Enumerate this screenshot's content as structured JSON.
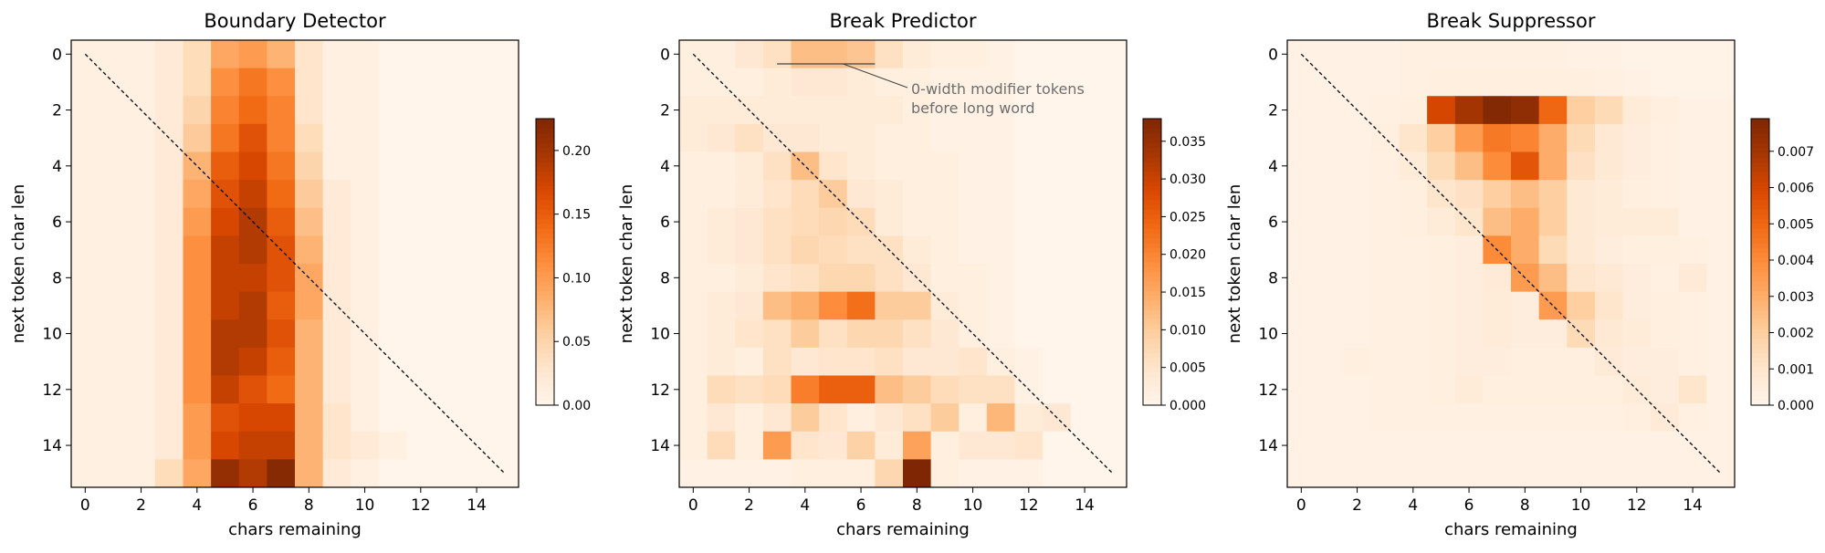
{
  "chart_data": [
    {
      "type": "heatmap",
      "title": "Boundary Detector",
      "xlabel": "chars remaining",
      "ylabel": "next token char len",
      "x_ticks": [
        "0",
        "2",
        "4",
        "6",
        "8",
        "10",
        "12",
        "14"
      ],
      "y_ticks": [
        "0",
        "2",
        "4",
        "6",
        "8",
        "10",
        "12",
        "14"
      ],
      "x_range": [
        0,
        15
      ],
      "y_range": [
        0,
        15
      ],
      "colorbar": {
        "ticks": [
          "0.00",
          "0.05",
          "0.10",
          "0.15",
          "0.20"
        ],
        "tick_values": [
          0,
          0.05,
          0.1,
          0.15,
          0.2
        ],
        "vmin": 0,
        "vmax": 0.225
      },
      "colormap": "Oranges",
      "diagonal_line": true,
      "values": [
        [
          0.01,
          0.01,
          0.01,
          0.02,
          0.04,
          0.09,
          0.1,
          0.08,
          0.03,
          0.01,
          0.01,
          0,
          0,
          0,
          0,
          0
        ],
        [
          0.01,
          0.01,
          0.01,
          0.02,
          0.04,
          0.11,
          0.13,
          0.11,
          0.03,
          0.01,
          0.01,
          0,
          0,
          0,
          0,
          0
        ],
        [
          0.01,
          0.01,
          0.01,
          0.02,
          0.05,
          0.12,
          0.14,
          0.12,
          0.03,
          0.01,
          0.01,
          0,
          0,
          0,
          0,
          0
        ],
        [
          0.01,
          0.01,
          0.01,
          0.02,
          0.06,
          0.13,
          0.16,
          0.12,
          0.04,
          0.01,
          0.01,
          0,
          0,
          0,
          0,
          0
        ],
        [
          0.01,
          0.01,
          0.01,
          0.02,
          0.08,
          0.15,
          0.17,
          0.13,
          0.05,
          0.01,
          0.01,
          0,
          0,
          0,
          0,
          0
        ],
        [
          0.01,
          0.01,
          0.01,
          0.02,
          0.09,
          0.16,
          0.18,
          0.14,
          0.06,
          0.02,
          0.01,
          0,
          0,
          0,
          0,
          0
        ],
        [
          0.01,
          0.01,
          0.01,
          0.02,
          0.1,
          0.17,
          0.19,
          0.15,
          0.07,
          0.02,
          0.01,
          0,
          0,
          0,
          0,
          0
        ],
        [
          0.01,
          0.01,
          0.01,
          0.02,
          0.11,
          0.18,
          0.19,
          0.16,
          0.08,
          0.02,
          0.01,
          0,
          0,
          0,
          0,
          0
        ],
        [
          0.01,
          0.01,
          0.01,
          0.02,
          0.11,
          0.18,
          0.18,
          0.16,
          0.09,
          0.02,
          0.01,
          0,
          0,
          0,
          0,
          0
        ],
        [
          0.01,
          0.01,
          0.01,
          0.02,
          0.11,
          0.18,
          0.19,
          0.15,
          0.09,
          0.02,
          0.01,
          0,
          0,
          0,
          0,
          0
        ],
        [
          0.01,
          0.01,
          0.01,
          0.02,
          0.11,
          0.19,
          0.19,
          0.16,
          0.08,
          0.02,
          0.01,
          0,
          0,
          0,
          0,
          0
        ],
        [
          0.01,
          0.01,
          0.01,
          0.02,
          0.11,
          0.19,
          0.18,
          0.15,
          0.08,
          0.02,
          0.01,
          0,
          0,
          0,
          0,
          0
        ],
        [
          0.01,
          0.01,
          0.01,
          0.02,
          0.11,
          0.18,
          0.16,
          0.14,
          0.08,
          0.02,
          0.01,
          0,
          0,
          0,
          0,
          0
        ],
        [
          0.01,
          0.01,
          0.01,
          0.02,
          0.1,
          0.16,
          0.17,
          0.17,
          0.08,
          0.03,
          0.01,
          0,
          0,
          0,
          0,
          0
        ],
        [
          0.01,
          0.01,
          0.01,
          0.02,
          0.1,
          0.17,
          0.18,
          0.18,
          0.08,
          0.03,
          0.02,
          0.01,
          0,
          0,
          0,
          0
        ],
        [
          0.01,
          0.01,
          0.01,
          0.04,
          0.09,
          0.21,
          0.19,
          0.22,
          0.08,
          0.02,
          0.01,
          0,
          0,
          0,
          0,
          0
        ]
      ]
    },
    {
      "type": "heatmap",
      "title": "Break Predictor",
      "xlabel": "chars remaining",
      "ylabel": "next token char len",
      "x_ticks": [
        "0",
        "2",
        "4",
        "6",
        "8",
        "10",
        "12",
        "14"
      ],
      "y_ticks": [
        "0",
        "2",
        "4",
        "6",
        "8",
        "10",
        "12",
        "14"
      ],
      "x_range": [
        0,
        15
      ],
      "y_range": [
        0,
        15
      ],
      "colorbar": {
        "ticks": [
          "0.000",
          "0.005",
          "0.010",
          "0.015",
          "0.020",
          "0.025",
          "0.030",
          "0.035"
        ],
        "tick_values": [
          0,
          0.005,
          0.01,
          0.015,
          0.02,
          0.025,
          0.03,
          0.035
        ],
        "vmin": 0,
        "vmax": 0.038
      },
      "colormap": "Oranges",
      "diagonal_line": true,
      "annotation": {
        "lines": [
          "0-width modifier tokens",
          "before long word"
        ]
      },
      "values": [
        [
          0.002,
          0.002,
          0.004,
          0.006,
          0.012,
          0.012,
          0.011,
          0.006,
          0.003,
          0.002,
          0.002,
          0.001,
          0,
          0,
          0,
          0
        ],
        [
          0.002,
          0.002,
          0.002,
          0.003,
          0.004,
          0.004,
          0.003,
          0.002,
          0.002,
          0.001,
          0.001,
          0.001,
          0,
          0,
          0,
          0
        ],
        [
          0.003,
          0.003,
          0.003,
          0.003,
          0.003,
          0.003,
          0.003,
          0.003,
          0.002,
          0.001,
          0.001,
          0.001,
          0,
          0,
          0,
          0
        ],
        [
          0.003,
          0.004,
          0.006,
          0.004,
          0.004,
          0.003,
          0.003,
          0.002,
          0.002,
          0.001,
          0.001,
          0.001,
          0,
          0,
          0,
          0
        ],
        [
          0.002,
          0.002,
          0.003,
          0.006,
          0.012,
          0.005,
          0.003,
          0.002,
          0.002,
          0.002,
          0.001,
          0.001,
          0,
          0,
          0,
          0
        ],
        [
          0.002,
          0.002,
          0.003,
          0.005,
          0.007,
          0.01,
          0.004,
          0.003,
          0.002,
          0.002,
          0.001,
          0.001,
          0,
          0,
          0,
          0
        ],
        [
          0.002,
          0.003,
          0.004,
          0.006,
          0.007,
          0.008,
          0.007,
          0.003,
          0.002,
          0.002,
          0.001,
          0.001,
          0,
          0,
          0,
          0
        ],
        [
          0.002,
          0.003,
          0.004,
          0.006,
          0.008,
          0.007,
          0.006,
          0.006,
          0.003,
          0.002,
          0.001,
          0.001,
          0,
          0,
          0,
          0
        ],
        [
          0.002,
          0.002,
          0.003,
          0.005,
          0.006,
          0.008,
          0.008,
          0.006,
          0.004,
          0.002,
          0.002,
          0.001,
          0,
          0,
          0,
          0
        ],
        [
          0.002,
          0.003,
          0.004,
          0.012,
          0.014,
          0.019,
          0.023,
          0.01,
          0.01,
          0.003,
          0.002,
          0.001,
          0,
          0,
          0,
          0
        ],
        [
          0.002,
          0.003,
          0.005,
          0.006,
          0.01,
          0.006,
          0.008,
          0.008,
          0.006,
          0.004,
          0.002,
          0.001,
          0,
          0,
          0,
          0
        ],
        [
          0.002,
          0.003,
          0.002,
          0.006,
          0.004,
          0.005,
          0.005,
          0.006,
          0.004,
          0.004,
          0.005,
          0.002,
          0.001,
          0,
          0,
          0
        ],
        [
          0.002,
          0.007,
          0.006,
          0.007,
          0.021,
          0.025,
          0.025,
          0.012,
          0.01,
          0.007,
          0.006,
          0.006,
          0.001,
          0,
          0,
          0
        ],
        [
          0.002,
          0.004,
          0.002,
          0.004,
          0.01,
          0.005,
          0.002,
          0.004,
          0.006,
          0.01,
          0.002,
          0.013,
          0.003,
          0.004,
          0,
          0
        ],
        [
          0.002,
          0.007,
          0.002,
          0.017,
          0.005,
          0.004,
          0.009,
          0.003,
          0.016,
          0.002,
          0.004,
          0.004,
          0.005,
          0,
          0,
          0
        ],
        [
          0.001,
          0.001,
          0.001,
          0.001,
          0.002,
          0.002,
          0.002,
          0.008,
          0.038,
          0.002,
          0.001,
          0.001,
          0.001,
          0,
          0,
          0
        ]
      ]
    },
    {
      "type": "heatmap",
      "title": "Break Suppressor",
      "xlabel": "chars remaining",
      "ylabel": "next token char len",
      "x_ticks": [
        "0",
        "2",
        "4",
        "6",
        "8",
        "10",
        "12",
        "14"
      ],
      "y_ticks": [
        "0",
        "2",
        "4",
        "6",
        "8",
        "10",
        "12",
        "14"
      ],
      "x_range": [
        0,
        15
      ],
      "y_range": [
        0,
        15
      ],
      "colorbar": {
        "ticks": [
          "0.000",
          "0.001",
          "0.002",
          "0.003",
          "0.004",
          "0.005",
          "0.006",
          "0.007"
        ],
        "tick_values": [
          0,
          0.001,
          0.002,
          0.003,
          0.004,
          0.005,
          0.006,
          0.007
        ],
        "vmin": 0,
        "vmax": 0.0079
      },
      "colormap": "Oranges",
      "diagonal_line": true,
      "values": [
        [
          0.0002,
          0.0002,
          0.0002,
          0.0002,
          0.0003,
          0.0003,
          0.0003,
          0.0003,
          0.0003,
          0.0003,
          0.0002,
          0.0002,
          0.0001,
          0.0001,
          0.0001,
          0.0001
        ],
        [
          0.0002,
          0.0002,
          0.0002,
          0.0002,
          0.0003,
          0.0004,
          0.0004,
          0.0004,
          0.0004,
          0.0004,
          0.0004,
          0.0003,
          0.0002,
          0.0001,
          0.0001,
          0.0001
        ],
        [
          0.0002,
          0.0002,
          0.0002,
          0.0003,
          0.0004,
          0.006,
          0.007,
          0.0078,
          0.0075,
          0.005,
          0.002,
          0.0015,
          0.0006,
          0.0004,
          0.0002,
          0.0002
        ],
        [
          0.0002,
          0.0002,
          0.0002,
          0.0004,
          0.001,
          0.002,
          0.0035,
          0.0045,
          0.0042,
          0.003,
          0.0015,
          0.0008,
          0.0005,
          0.0003,
          0.0002,
          0.0002
        ],
        [
          0.0002,
          0.0002,
          0.0002,
          0.0003,
          0.0006,
          0.0015,
          0.0025,
          0.004,
          0.0055,
          0.003,
          0.0012,
          0.0008,
          0.0005,
          0.0003,
          0.0002,
          0.0002
        ],
        [
          0.0002,
          0.0002,
          0.0002,
          0.0003,
          0.0004,
          0.001,
          0.0012,
          0.002,
          0.0025,
          0.002,
          0.0008,
          0.0006,
          0.0004,
          0.0003,
          0.0002,
          0.0002
        ],
        [
          0.0002,
          0.0002,
          0.0002,
          0.0003,
          0.0004,
          0.0006,
          0.001,
          0.0025,
          0.003,
          0.002,
          0.0008,
          0.0006,
          0.0006,
          0.0006,
          0.0002,
          0.0002
        ],
        [
          0.0002,
          0.0002,
          0.0002,
          0.0003,
          0.0003,
          0.0004,
          0.0005,
          0.004,
          0.003,
          0.0015,
          0.0008,
          0.0005,
          0.0004,
          0.0004,
          0.0003,
          0.0002
        ],
        [
          0.0002,
          0.0002,
          0.0002,
          0.0003,
          0.0003,
          0.0004,
          0.0005,
          0.0007,
          0.0035,
          0.0025,
          0.001,
          0.0008,
          0.0005,
          0.0003,
          0.0007,
          0.0002
        ],
        [
          0.0002,
          0.0002,
          0.0002,
          0.0003,
          0.0003,
          0.0004,
          0.0005,
          0.0006,
          0.0005,
          0.0035,
          0.002,
          0.001,
          0.0005,
          0.0004,
          0.0003,
          0.0002
        ],
        [
          0.0002,
          0.0002,
          0.0002,
          0.0003,
          0.0003,
          0.0004,
          0.0005,
          0.0006,
          0.0005,
          0.0005,
          0.0015,
          0.0008,
          0.0006,
          0.0004,
          0.0003,
          0.0002
        ],
        [
          0.0002,
          0.0002,
          0.0004,
          0.0003,
          0.0003,
          0.0004,
          0.0005,
          0.0005,
          0.0004,
          0.0004,
          0.0004,
          0.0007,
          0.0005,
          0.0005,
          0.0003,
          0.0002
        ],
        [
          0.0002,
          0.0002,
          0.0002,
          0.0003,
          0.0003,
          0.0004,
          0.0006,
          0.0004,
          0.0004,
          0.0004,
          0.0004,
          0.0004,
          0.0006,
          0.0005,
          0.001,
          0.0002
        ],
        [
          0.0002,
          0.0002,
          0.0002,
          0.0003,
          0.0003,
          0.0003,
          0.0003,
          0.0003,
          0.0003,
          0.0003,
          0.0003,
          0.0003,
          0.0004,
          0.0007,
          0.0003,
          0.0002
        ],
        [
          0.0002,
          0.0002,
          0.0002,
          0.0002,
          0.0002,
          0.0002,
          0.0002,
          0.0002,
          0.0002,
          0.0002,
          0.0002,
          0.0002,
          0.0002,
          0.0002,
          0.0002,
          0.0002
        ],
        [
          0.0002,
          0.0002,
          0.0002,
          0.0002,
          0.0002,
          0.0002,
          0.0002,
          0.0002,
          0.0002,
          0.0002,
          0.0002,
          0.0002,
          0.0002,
          0.0002,
          0.0002,
          0.0002
        ]
      ]
    }
  ]
}
